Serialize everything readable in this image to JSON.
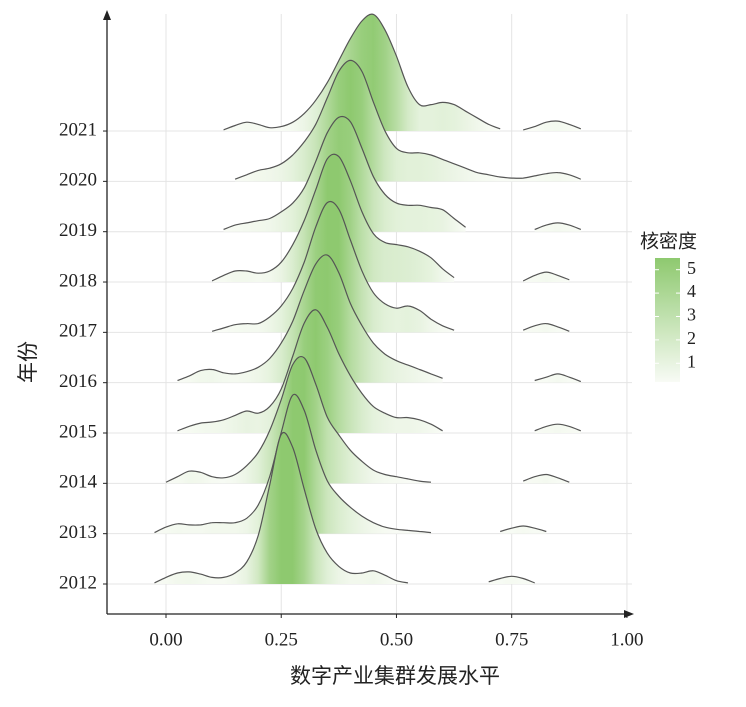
{
  "chart_data": {
    "type": "ridgeline",
    "x_label": "数字产业集群发展水平",
    "y_label": "年份",
    "xlim": [
      -0.128,
      1.011
    ],
    "xticks": [
      {
        "value": 0,
        "label": "0.00"
      },
      {
        "value": 0.25,
        "label": "0.25"
      },
      {
        "value": 0.5,
        "label": "0.50"
      },
      {
        "value": 0.75,
        "label": "0.75"
      },
      {
        "value": 1,
        "label": "1.00"
      }
    ],
    "grid": true,
    "line_color": "#555555",
    "colorbar": {
      "title": "核密度",
      "lim": [
        0.2,
        5.5
      ],
      "ticks": [
        1,
        2,
        3,
        4,
        5
      ],
      "low_color": "#f8fbf5",
      "high_color": "#8ec96f"
    },
    "x": [
      -0.05,
      -0.025,
      0,
      0.025,
      0.05,
      0.075,
      0.1,
      0.125,
      0.15,
      0.175,
      0.2,
      0.225,
      0.25,
      0.275,
      0.3,
      0.325,
      0.35,
      0.375,
      0.4,
      0.425,
      0.45,
      0.475,
      0.5,
      0.525,
      0.55,
      0.575,
      0.6,
      0.625,
      0.65,
      0.675,
      0.7,
      0.725,
      0.75,
      0.775,
      0.8,
      0.825,
      0.85,
      0.875,
      0.9,
      0.925,
      0.95
    ],
    "series": [
      {
        "name": "2012",
        "values": [
          null,
          0.05,
          0.3,
          0.5,
          0.55,
          0.45,
          0.3,
          0.3,
          0.5,
          1.0,
          2.2,
          4.5,
          6.8,
          6.2,
          4.3,
          2.5,
          1.4,
          0.8,
          0.5,
          0.5,
          0.6,
          0.4,
          0.15,
          0.05,
          null,
          null,
          null,
          null,
          null,
          null,
          0.1,
          0.25,
          0.35,
          0.25,
          0.05,
          null,
          null,
          null,
          null,
          null,
          null
        ]
      },
      {
        "name": "2013",
        "values": [
          null,
          0.05,
          0.3,
          0.45,
          0.4,
          0.4,
          0.5,
          0.5,
          0.5,
          0.7,
          1.3,
          2.6,
          4.6,
          6.3,
          5.6,
          3.8,
          2.4,
          1.7,
          1.2,
          0.8,
          0.5,
          0.3,
          0.2,
          0.15,
          0.1,
          0.05,
          null,
          null,
          null,
          null,
          null,
          0.1,
          0.25,
          0.35,
          0.25,
          0.1,
          null,
          null,
          null,
          null,
          null
        ]
      },
      {
        "name": "2014",
        "values": [
          null,
          null,
          0.05,
          0.3,
          0.55,
          0.5,
          0.3,
          0.25,
          0.4,
          0.8,
          1.4,
          2.4,
          3.8,
          5.4,
          5.7,
          4.5,
          3.0,
          2.2,
          1.5,
          1.0,
          0.6,
          0.4,
          0.3,
          0.2,
          0.1,
          0.05,
          null,
          null,
          null,
          null,
          null,
          null,
          null,
          0.1,
          0.3,
          0.4,
          0.25,
          0.05,
          null,
          null,
          null
        ]
      },
      {
        "name": "2015",
        "values": [
          null,
          null,
          null,
          0.1,
          0.3,
          0.45,
          0.5,
          0.6,
          0.8,
          1.0,
          0.9,
          1.2,
          2.0,
          3.5,
          5.0,
          5.6,
          4.8,
          3.6,
          2.6,
          1.8,
          1.2,
          0.9,
          0.7,
          0.7,
          0.6,
          0.4,
          0.1,
          null,
          null,
          null,
          null,
          null,
          null,
          null,
          0.1,
          0.3,
          0.4,
          0.3,
          0.1,
          null,
          null
        ]
      },
      {
        "name": "2016",
        "values": [
          null,
          null,
          null,
          0.1,
          0.3,
          0.55,
          0.6,
          0.45,
          0.4,
          0.5,
          0.7,
          1.1,
          1.8,
          2.8,
          4.2,
          5.4,
          5.8,
          5.0,
          3.6,
          2.6,
          1.8,
          1.3,
          1.0,
          0.8,
          0.6,
          0.4,
          0.2,
          null,
          null,
          null,
          null,
          null,
          null,
          null,
          0.1,
          0.25,
          0.4,
          0.25,
          0.05,
          null,
          null
        ]
      },
      {
        "name": "2017",
        "values": [
          null,
          null,
          null,
          null,
          null,
          null,
          0.05,
          0.2,
          0.35,
          0.4,
          0.4,
          0.7,
          1.2,
          2.0,
          3.2,
          4.8,
          5.9,
          5.6,
          4.2,
          2.8,
          1.8,
          1.3,
          1.1,
          1.2,
          1.0,
          0.6,
          0.3,
          0.1,
          null,
          null,
          null,
          null,
          null,
          0.1,
          0.3,
          0.4,
          0.25,
          0.05,
          null,
          null,
          null
        ]
      },
      {
        "name": "2018",
        "values": [
          null,
          null,
          null,
          null,
          null,
          null,
          0.05,
          0.3,
          0.5,
          0.5,
          0.4,
          0.5,
          0.9,
          1.7,
          2.8,
          4.2,
          5.6,
          5.7,
          4.6,
          3.2,
          2.2,
          1.8,
          1.7,
          1.6,
          1.4,
          1.1,
          0.6,
          0.2,
          null,
          null,
          null,
          null,
          null,
          0.05,
          0.3,
          0.45,
          0.3,
          0.1,
          null,
          null,
          null
        ]
      },
      {
        "name": "2019",
        "values": [
          null,
          null,
          null,
          null,
          null,
          null,
          null,
          0.1,
          0.3,
          0.4,
          0.5,
          0.6,
          0.9,
          1.3,
          2.0,
          3.2,
          4.5,
          5.2,
          5.0,
          3.8,
          2.5,
          1.7,
          1.3,
          1.2,
          1.2,
          1.1,
          1.0,
          0.6,
          0.2,
          null,
          null,
          null,
          null,
          null,
          0.1,
          0.3,
          0.4,
          0.3,
          0.1,
          null,
          null
        ]
      },
      {
        "name": "2020",
        "values": [
          null,
          null,
          null,
          null,
          null,
          null,
          null,
          null,
          0.1,
          0.3,
          0.5,
          0.6,
          0.8,
          1.2,
          1.8,
          2.6,
          3.8,
          5.0,
          5.5,
          5.0,
          3.6,
          2.3,
          1.5,
          1.3,
          1.3,
          1.2,
          1.0,
          0.8,
          0.6,
          0.4,
          0.3,
          0.2,
          0.15,
          0.15,
          0.25,
          0.35,
          0.4,
          0.3,
          0.1,
          null,
          null
        ]
      },
      {
        "name": "2021",
        "values": [
          null,
          null,
          null,
          null,
          null,
          null,
          null,
          0.05,
          0.25,
          0.4,
          0.3,
          0.15,
          0.2,
          0.4,
          0.8,
          1.4,
          2.2,
          3.2,
          4.2,
          5.0,
          5.3,
          4.6,
          3.4,
          2.0,
          1.2,
          1.2,
          1.3,
          1.2,
          0.9,
          0.6,
          0.3,
          0.1,
          null,
          0.05,
          0.2,
          0.4,
          0.45,
          0.3,
          0.1,
          null,
          null
        ]
      }
    ]
  }
}
